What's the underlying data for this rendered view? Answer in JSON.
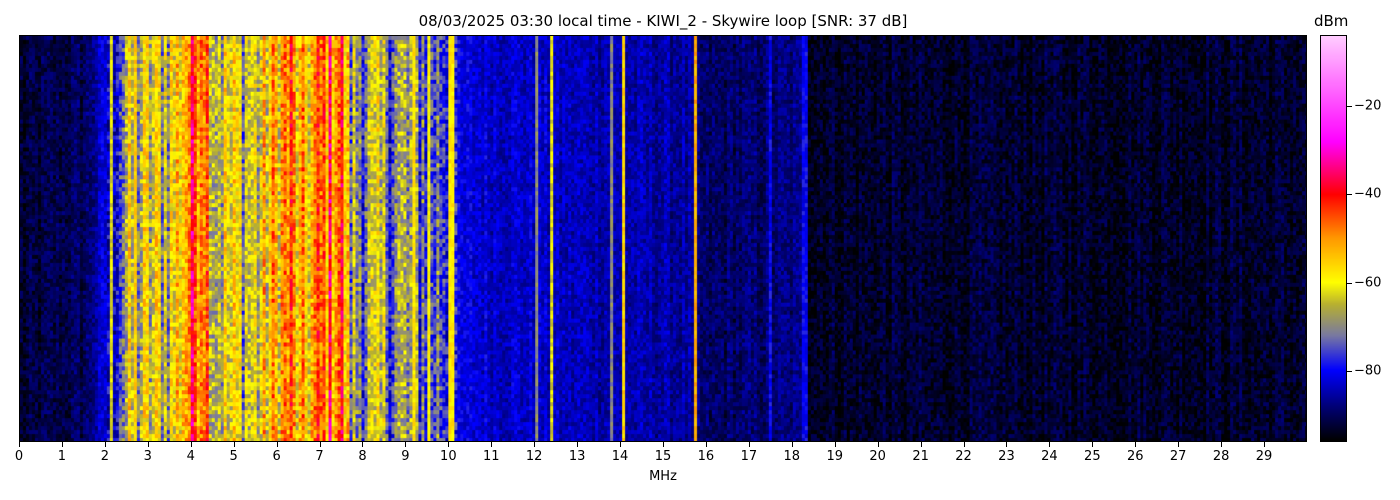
{
  "chart_data": {
    "type": "heatmap",
    "title": "08/03/2025 03:30 local time - KIWI_2 - Skywire loop [SNR: 37 dB]",
    "xlabel": "MHz",
    "ylabel": "",
    "xlim": [
      0,
      30
    ],
    "x_ticks": [
      "0",
      "1",
      "2",
      "3",
      "4",
      "5",
      "6",
      "7",
      "8",
      "9",
      "10",
      "11",
      "12",
      "13",
      "14",
      "15",
      "16",
      "17",
      "18",
      "19",
      "20",
      "21",
      "22",
      "23",
      "24",
      "25",
      "26",
      "27",
      "28",
      "29"
    ],
    "colorbar": {
      "label": "dBm",
      "range": [
        -96,
        -4
      ],
      "ticks": [
        "−20",
        "−40",
        "−60",
        "−80"
      ],
      "tick_values": [
        -20,
        -40,
        -60,
        -80
      ],
      "colormap": [
        [
          -96,
          "#000000"
        ],
        [
          -88,
          "#00007a"
        ],
        [
          -80,
          "#0000ff"
        ],
        [
          -72,
          "#7a7aa0"
        ],
        [
          -65,
          "#b8b030"
        ],
        [
          -60,
          "#ffff00"
        ],
        [
          -50,
          "#ff9900"
        ],
        [
          -40,
          "#ff0000"
        ],
        [
          -28,
          "#ff00ff"
        ],
        [
          -4,
          "#ffccff"
        ]
      ]
    },
    "band_profile_dBm": [
      [
        0,
        -93
      ],
      [
        1.5,
        -90
      ],
      [
        2.0,
        -82
      ],
      [
        2.5,
        -66
      ],
      [
        3.5,
        -62
      ],
      [
        4.1,
        -42
      ],
      [
        4.3,
        -42
      ],
      [
        4.5,
        -62
      ],
      [
        5.5,
        -64
      ],
      [
        6.3,
        -48
      ],
      [
        6.5,
        -60
      ],
      [
        7.2,
        -45
      ],
      [
        7.5,
        -45
      ],
      [
        7.7,
        -68
      ],
      [
        9.0,
        -70
      ],
      [
        10.1,
        -75
      ],
      [
        10.2,
        -82
      ],
      [
        12.5,
        -84
      ],
      [
        15.6,
        -86
      ],
      [
        15.9,
        -90
      ],
      [
        18.3,
        -88
      ],
      [
        18.4,
        -93
      ],
      [
        30,
        -93
      ]
    ],
    "narrow_lines_MHz": [
      [
        2.1,
        -62
      ],
      [
        2.65,
        -55
      ],
      [
        9.15,
        -58
      ],
      [
        9.55,
        -60
      ],
      [
        10.05,
        -58
      ],
      [
        12.05,
        -70
      ],
      [
        12.4,
        -62
      ],
      [
        13.8,
        -70
      ],
      [
        14.05,
        -56
      ],
      [
        15.72,
        -52
      ],
      [
        17.5,
        -80
      ],
      [
        18.3,
        -80
      ]
    ]
  }
}
